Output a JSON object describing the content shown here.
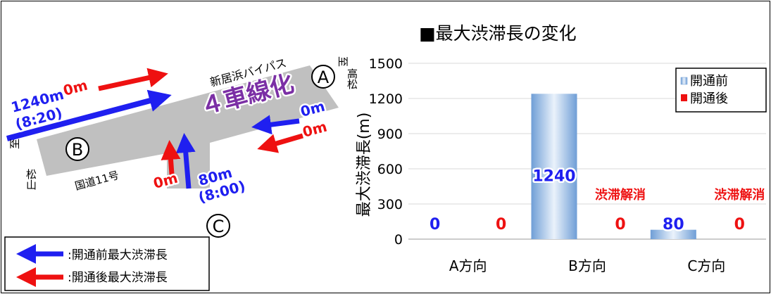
{
  "map": {
    "colors": {
      "before": "#1f1ff0",
      "after": "#ee1111",
      "road": "#c0c0c0",
      "lanes": "#7b2fa5"
    },
    "road_lanes_label": "４車線化",
    "road_name_bypass": "新居浜バイパス",
    "road_name_route11": "国道11号",
    "direction_a_to": "至",
    "direction_a_dest": "高松",
    "direction_b_to": "至",
    "direction_b_dest": "松山",
    "node_a": "A",
    "node_b": "B",
    "node_c": "C",
    "b_before_len": "1240m",
    "b_before_time": "(8:20)",
    "b_after_len": "0m",
    "a_before_len": "0m",
    "a_after_len": "0m",
    "c_before_len": "80m",
    "c_before_time": "(8:00)",
    "c_after_len": "0m"
  },
  "map_legend": {
    "before_label": ":開通前最大渋滞長",
    "after_label": ":開通後最大渋滞長"
  },
  "chart_data": {
    "type": "bar",
    "title": "■最大渋滞長の変化",
    "ylabel": "最大渋滞長(m)",
    "xlabel": "",
    "ylim": [
      0,
      1500
    ],
    "yticks": [
      0,
      300,
      600,
      900,
      1200,
      1500
    ],
    "categories": [
      "A方向",
      "B方向",
      "C方向"
    ],
    "series": [
      {
        "name": "開通前",
        "values": [
          0,
          1240,
          80
        ],
        "labels": [
          "0",
          "1240",
          "80"
        ],
        "color": "#8fb4de"
      },
      {
        "name": "開通後",
        "values": [
          0,
          0,
          0
        ],
        "labels": [
          "0",
          "0",
          "0"
        ],
        "color": "#ee1111"
      }
    ],
    "annotations": [
      "",
      "渋滞解消",
      "渋滞解消"
    ],
    "grid": true,
    "legend": "top-right"
  }
}
